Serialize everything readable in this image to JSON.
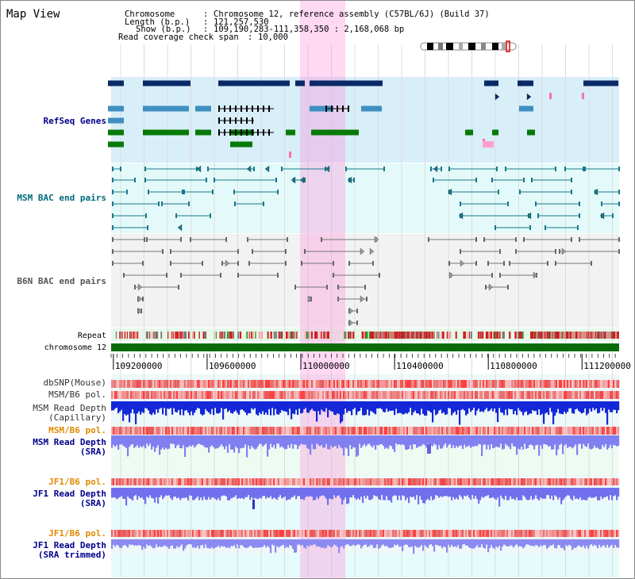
{
  "header": {
    "view_title": "Map View",
    "chromosome_label": "Chromosome",
    "chromosome_value": "Chromosome 12, reference assembly (C57BL/6J) (Build 37)",
    "length_label": "Length (b.p.)",
    "length_value": "121,257,530",
    "show_label": "Show (b.p.)",
    "show_value": "109,190,283-111,358,350 : 2,168,068 bp",
    "coverage_label": "Read coverage check span",
    "coverage_value": "10,000"
  },
  "tracks": {
    "refseq": "RefSeq Genes",
    "msm_bac": "MSM BAC end pairs",
    "b6n_bac": "B6N BAC end pairs",
    "repeat": "Repeat",
    "chromosome": "chromosome 12",
    "dbsnp": "dbSNP(Mouse)",
    "msm_b6_pol_1": "MSM/B6 pol.",
    "msm_read_depth_cap_1": "MSM Read Depth",
    "msm_read_depth_cap_2": "(Capillary)",
    "msm_b6_pol_2": "MSM/B6 pol.",
    "msm_read_depth_sra_1": "MSM Read Depth",
    "msm_read_depth_sra_2": "(SRA)",
    "jf1_b6_pol_1": "JF1/B6 pol.",
    "jf1_read_depth_sra_1": "JF1 Read Depth",
    "jf1_read_depth_sra_2": "(SRA)",
    "jf1_b6_pol_2": "JF1/B6 pol.",
    "jf1_read_depth_trim_1": "JF1 Read Depth",
    "jf1_read_depth_trim_2": "(SRA trimmed)"
  },
  "axis": {
    "ticks": [
      "109200000",
      "109600000",
      "110000000",
      "110400000",
      "110800000",
      "111200000"
    ],
    "range_bp": [
      109190283,
      111358350
    ]
  },
  "highlight_bp": [
    110000000,
    110166000
  ],
  "colors": {
    "label_navy": "#00008b",
    "label_teal": "#006b7a",
    "label_gray": "#555555",
    "label_orange": "#e08a00",
    "refseq_bg": "#d8eef9",
    "msm_bac_bg": "#e4fafa",
    "b6n_bac_bg": "#f2f2f2",
    "highlight": "#ff8ad8",
    "chromosome_bar": "#0b6b0b"
  }
}
